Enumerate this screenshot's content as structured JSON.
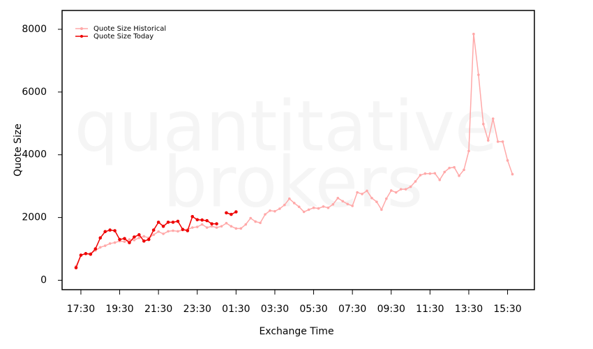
{
  "chart_data": {
    "type": "line",
    "x_label": "Exchange Time",
    "y_label": "Quote Size",
    "watermark": [
      "quantitative",
      "brokers"
    ],
    "categories": [
      null,
      "17:30",
      null,
      null,
      null,
      null,
      null,
      null,
      null,
      "19:30",
      null,
      null,
      null,
      null,
      null,
      null,
      null,
      "21:30",
      null,
      null,
      null,
      null,
      null,
      null,
      null,
      "23:30",
      null,
      null,
      null,
      null,
      null,
      null,
      null,
      "01:30",
      null,
      null,
      null,
      null,
      null,
      null,
      null,
      "03:30",
      null,
      null,
      null,
      null,
      null,
      null,
      null,
      "05:30",
      null,
      null,
      null,
      null,
      null,
      null,
      null,
      "07:30",
      null,
      null,
      null,
      null,
      null,
      null,
      null,
      "09:30",
      null,
      null,
      null,
      null,
      null,
      null,
      null,
      "11:30",
      null,
      null,
      null,
      null,
      null,
      null,
      null,
      "13:30",
      null,
      null,
      null,
      null,
      null,
      null,
      null,
      "15:30",
      null
    ],
    "series": [
      {
        "name": "Quote Size Historical",
        "color": "#ffa8a8",
        "values": [
          450,
          800,
          850,
          850,
          950,
          1050,
          1100,
          1170,
          1200,
          1250,
          1230,
          1300,
          1280,
          1350,
          1400,
          1350,
          1450,
          1550,
          1480,
          1560,
          1580,
          1560,
          1600,
          1620,
          1680,
          1700,
          1780,
          1680,
          1720,
          1680,
          1720,
          1820,
          1720,
          1650,
          1650,
          1780,
          1980,
          1870,
          1830,
          2100,
          2220,
          2200,
          2280,
          2400,
          2600,
          2460,
          2340,
          2180,
          2250,
          2310,
          2290,
          2350,
          2310,
          2420,
          2620,
          2520,
          2430,
          2370,
          2800,
          2750,
          2850,
          2620,
          2500,
          2250,
          2600,
          2860,
          2800,
          2900,
          2900,
          2980,
          3150,
          3350,
          3400,
          3400,
          3410,
          3200,
          3450,
          3580,
          3600,
          3330,
          3520,
          4120,
          7850,
          6550,
          4980,
          4460,
          5150,
          4420,
          4420,
          3820,
          3380
        ]
      },
      {
        "name": "Quote Size Today",
        "color": "#ee0000",
        "values": [
          400,
          800,
          850,
          830,
          1000,
          1350,
          1550,
          1600,
          1580,
          1300,
          1330,
          1200,
          1380,
          1450,
          1250,
          1300,
          1600,
          1850,
          1720,
          1850,
          1850,
          1880,
          1620,
          1580,
          2030,
          1930,
          1920,
          1900,
          1800,
          1800,
          null,
          2150,
          2100,
          2180,
          null,
          null,
          null,
          null,
          null,
          null,
          null,
          null,
          null,
          null,
          null,
          null,
          null,
          null,
          null,
          null,
          null,
          null,
          null,
          null,
          null,
          null,
          null,
          null,
          null,
          null,
          null,
          null,
          null,
          null,
          null,
          null,
          null,
          null,
          null,
          null,
          null,
          null,
          null,
          null,
          null,
          null,
          null,
          null,
          null,
          null,
          null,
          null,
          null,
          null,
          null,
          null,
          null,
          null,
          null,
          null,
          null
        ]
      }
    ],
    "ylim": [
      -300,
      8600
    ],
    "yticks": [
      0,
      2000,
      4000,
      6000,
      8000
    ],
    "grid": false,
    "legend": "top-left"
  }
}
